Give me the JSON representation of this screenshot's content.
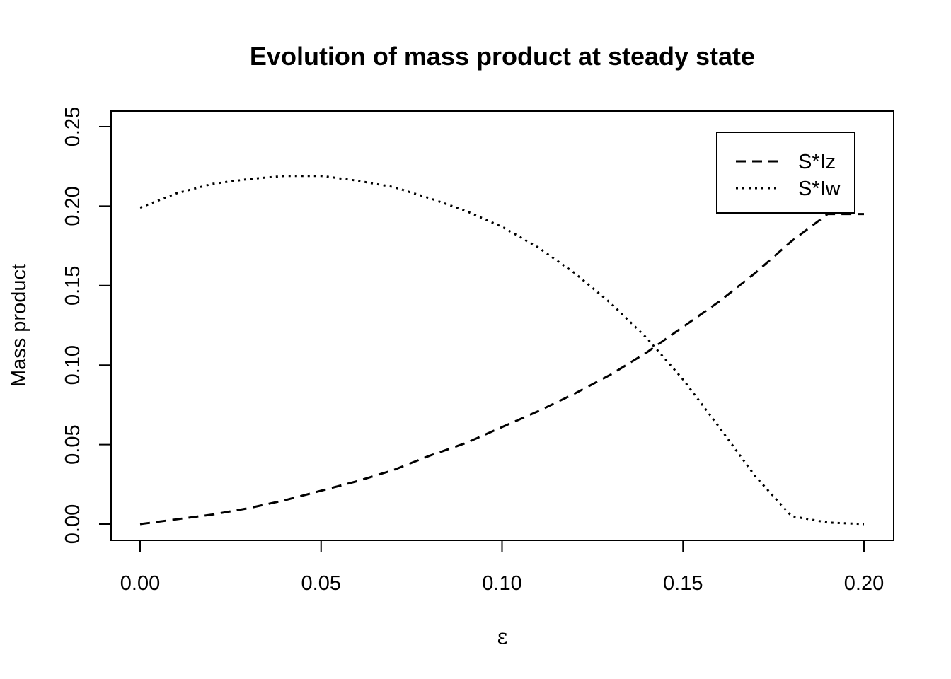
{
  "chart_data": {
    "type": "line",
    "title": "Evolution of mass product at steady state",
    "xlabel": "ε",
    "ylabel": "Mass product",
    "xlim": [
      0.0,
      0.2
    ],
    "ylim": [
      0.0,
      0.25
    ],
    "x_ticks": [
      "0.00",
      "0.05",
      "0.10",
      "0.15",
      "0.20"
    ],
    "y_ticks": [
      "0.00",
      "0.05",
      "0.10",
      "0.15",
      "0.20",
      "0.25"
    ],
    "legend_position": "top-right",
    "grid": false,
    "series": [
      {
        "name": "S*Iz",
        "line_style": "dashed",
        "color": "#000000",
        "x": [
          0.0,
          0.01,
          0.02,
          0.03,
          0.04,
          0.05,
          0.06,
          0.07,
          0.08,
          0.09,
          0.1,
          0.11,
          0.12,
          0.13,
          0.14,
          0.15,
          0.16,
          0.17,
          0.18,
          0.19,
          0.2
        ],
        "y": [
          0.0,
          0.003,
          0.006,
          0.01,
          0.015,
          0.021,
          0.027,
          0.034,
          0.043,
          0.051,
          0.061,
          0.071,
          0.082,
          0.094,
          0.108,
          0.124,
          0.14,
          0.158,
          0.178,
          0.195,
          0.195
        ]
      },
      {
        "name": "S*Iw",
        "line_style": "dotted",
        "color": "#000000",
        "x": [
          0.0,
          0.01,
          0.02,
          0.03,
          0.04,
          0.05,
          0.06,
          0.07,
          0.08,
          0.09,
          0.1,
          0.11,
          0.12,
          0.13,
          0.14,
          0.15,
          0.16,
          0.17,
          0.18,
          0.19,
          0.2
        ],
        "y": [
          0.199,
          0.208,
          0.214,
          0.217,
          0.219,
          0.219,
          0.216,
          0.212,
          0.205,
          0.197,
          0.187,
          0.174,
          0.158,
          0.139,
          0.117,
          0.091,
          0.061,
          0.03,
          0.005,
          0.001,
          0.0
        ]
      }
    ]
  }
}
